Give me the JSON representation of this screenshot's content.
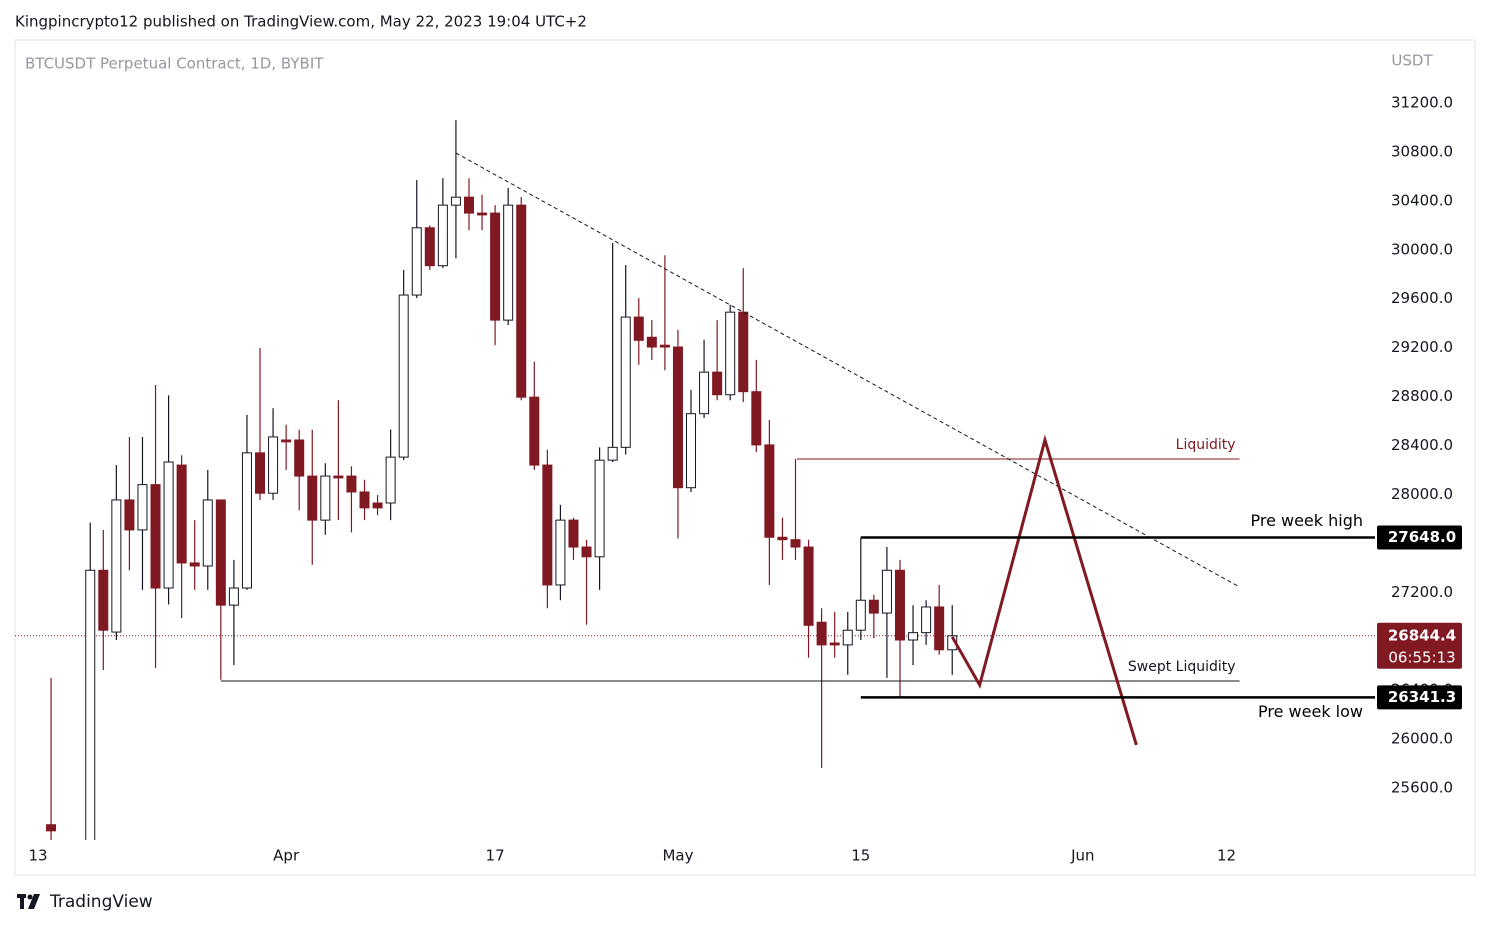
{
  "header": "Kingpincrypto12 published on TradingView.com, May 22, 2023 19:04 UTC+2",
  "footer": "TradingView",
  "chart_data": {
    "type": "candlestick",
    "title": "BTCUSDT Perpetual Contract, 1D, BYBIT",
    "y_axis_label": "USDT",
    "up_color": "#ffffff",
    "down_color": "#801922",
    "x": [
      1,
      4,
      5,
      6,
      7,
      8,
      9,
      10,
      11,
      12,
      13,
      14,
      15,
      16,
      17,
      18,
      19,
      20,
      21,
      22,
      23,
      24,
      25,
      26,
      27,
      28,
      29,
      30,
      31,
      32,
      33,
      34,
      35,
      36,
      37,
      38,
      39,
      40,
      41,
      42,
      43,
      44,
      45,
      46,
      47,
      48,
      49,
      50,
      51,
      52,
      53,
      54,
      55,
      56,
      57,
      58,
      59,
      60,
      61,
      62,
      63,
      64,
      65,
      66,
      67,
      68,
      69,
      70
    ],
    "open": [
      25300,
      25000,
      27380,
      26875,
      27955,
      27710,
      28080,
      27235,
      28240,
      27440,
      27415,
      27955,
      27095,
      27235,
      28340,
      28010,
      28445,
      28445,
      28150,
      27790,
      28150,
      28150,
      28020,
      27930,
      27930,
      28305,
      29630,
      30180,
      29870,
      30365,
      30430,
      30300,
      30300,
      29425,
      30365,
      28795,
      28240,
      27260,
      27790,
      27570,
      27490,
      28280,
      28385,
      29450,
      29285,
      29220,
      29205,
      28055,
      28660,
      29000,
      28815,
      29490,
      28840,
      28405,
      27650,
      27630,
      27570,
      26955,
      26785,
      26770,
      26890,
      27135,
      27030,
      27380,
      26810,
      26870,
      27080,
      26730
    ],
    "high": [
      26500,
      27770,
      27710,
      28240,
      28470,
      28470,
      28895,
      28810,
      28320,
      27790,
      28200,
      27960,
      27465,
      28650,
      29197,
      28705,
      28570,
      28530,
      28530,
      28255,
      28770,
      28230,
      28120,
      27995,
      28530,
      29835,
      30570,
      30200,
      30585,
      31060,
      30585,
      30450,
      30365,
      30505,
      30430,
      29085,
      28365,
      27915,
      27810,
      27630,
      28385,
      30055,
      29875,
      29605,
      29425,
      29955,
      29345,
      28855,
      29265,
      29425,
      29550,
      29850,
      29100,
      28610,
      27810,
      28290,
      27630,
      27070,
      27040,
      27040,
      27648,
      27180,
      27570,
      27465,
      27095,
      27135,
      27260,
      27095
    ],
    "low": [
      25150,
      24900,
      26565,
      26810,
      27380,
      27220,
      26580,
      27100,
      26990,
      27220,
      27220,
      26485,
      26605,
      27220,
      27955,
      27955,
      28200,
      27870,
      27425,
      27670,
      27790,
      27690,
      27790,
      27830,
      27790,
      28280,
      29605,
      29835,
      29850,
      29930,
      30160,
      30160,
      29220,
      29385,
      28770,
      28200,
      27070,
      27135,
      27465,
      26935,
      27220,
      28265,
      28325,
      29060,
      29100,
      29015,
      27640,
      28020,
      28625,
      28770,
      28770,
      28755,
      28345,
      27260,
      27465,
      27465,
      26665,
      25765,
      26665,
      26525,
      26810,
      26825,
      26500,
      26341.3,
      26605,
      26770,
      26690,
      26525
    ],
    "close": [
      25250,
      27380,
      26890,
      27955,
      27710,
      28080,
      27235,
      28265,
      27440,
      27415,
      27955,
      27095,
      27235,
      28340,
      28010,
      28470,
      28430,
      28150,
      27790,
      28150,
      28135,
      28020,
      27890,
      27890,
      28305,
      29630,
      30180,
      29870,
      30365,
      30430,
      30300,
      30285,
      29425,
      30365,
      28795,
      28240,
      27260,
      27790,
      27570,
      27490,
      28280,
      28385,
      29450,
      29260,
      29205,
      29205,
      28055,
      28660,
      29000,
      28815,
      29490,
      28840,
      28405,
      27650,
      27630,
      27570,
      26930,
      26770,
      26770,
      26890,
      27135,
      27030,
      27380,
      26810,
      26870,
      27080,
      26730,
      26844.4
    ],
    "xlim": [
      -1.76,
      102.37
    ],
    "ylim": [
      25175,
      31715
    ],
    "xticks": [
      {
        "value": 0,
        "label": "13"
      },
      {
        "value": 19,
        "label": "Apr"
      },
      {
        "value": 35,
        "label": "17"
      },
      {
        "value": 49,
        "label": "May"
      },
      {
        "value": 63,
        "label": "15"
      },
      {
        "value": 80,
        "label": "Jun"
      },
      {
        "value": 91,
        "label": "12"
      }
    ],
    "yticks": [
      {
        "value": 25600,
        "label": "25600.0"
      },
      {
        "value": 26000,
        "label": "26000.0"
      },
      {
        "value": 26400,
        "label": "26400.0"
      },
      {
        "value": 26800,
        "label": "26800.0"
      },
      {
        "value": 27200,
        "label": "27200.0"
      },
      {
        "value": 27600,
        "label": "27600.0"
      },
      {
        "value": 28000,
        "label": "28000.0"
      },
      {
        "value": 28400,
        "label": "28400.0"
      },
      {
        "value": 28800,
        "label": "28800.0"
      },
      {
        "value": 29200,
        "label": "29200.0"
      },
      {
        "value": 29600,
        "label": "29600.0"
      },
      {
        "value": 30000,
        "label": "30000.0"
      },
      {
        "value": 30400,
        "label": "30400.0"
      },
      {
        "value": 30800,
        "label": "30800.0"
      },
      {
        "value": 31200,
        "label": "31200.0"
      }
    ],
    "level_lines": [
      {
        "label": "Pre week high",
        "value": 27648.0,
        "value_label": "27648.0",
        "x_start": 63
      },
      {
        "label": "Pre week low",
        "value": 26341.3,
        "value_label": "26341.3",
        "x_start": 63
      }
    ],
    "zones": [
      {
        "label": "Liquidity",
        "value": 28290,
        "x": [
          58.1,
          92
        ],
        "color": "#801922"
      },
      {
        "label": "Swept Liquidity",
        "value": 26475,
        "x": [
          14,
          92
        ],
        "color": "#131722"
      }
    ],
    "trendline": {
      "x": [
        32,
        92
      ],
      "y": [
        30791,
        27243
      ]
    },
    "projection": {
      "x": [
        70,
        72.1,
        77.1,
        84.1
      ],
      "y": [
        26835,
        26442,
        28445,
        25952
      ],
      "color": "#801922"
    },
    "last_price": {
      "value": 26844.4,
      "value_label": "26844.4",
      "countdown": "06:55:13",
      "color": "#801922"
    }
  }
}
